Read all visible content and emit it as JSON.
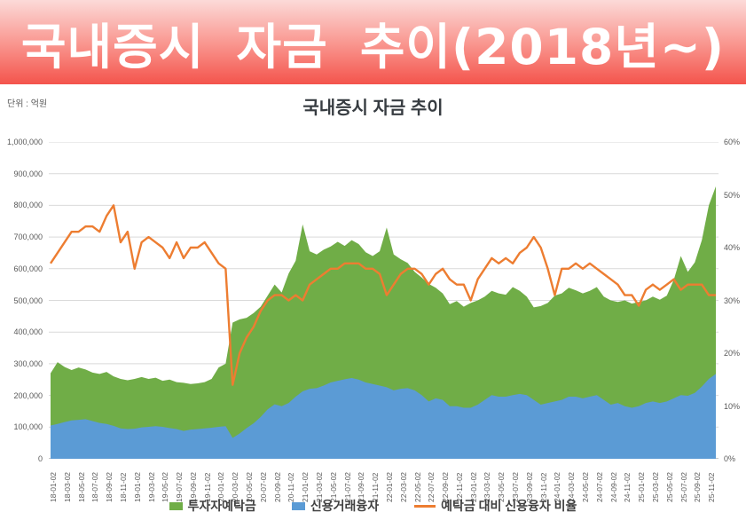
{
  "banner": {
    "title": "국내증시 자금 추이(2018년~)"
  },
  "chart": {
    "title": "국내증시 자금 추이",
    "unit_label": "단위 : 억원"
  },
  "chart_data": {
    "type": "area",
    "title": "국내증시 자금 추이",
    "x_unit": "months since 2018-01 (daily data shown, ticks every 2 months)",
    "x_tick_labels": [
      "18-01-02",
      "18-03-02",
      "18-05-02",
      "18-07-02",
      "18-09-02",
      "18-11-02",
      "19-01-02",
      "19-03-02",
      "19-05-02",
      "19-07-02",
      "19-09-02",
      "19-11-02",
      "20-01-02",
      "20-03-02",
      "20-05-02",
      "20-07-02",
      "20-09-02",
      "20-11-02",
      "21-01-02",
      "21-03-02",
      "21-05-02",
      "21-07-02",
      "21-09-02",
      "21-11-02",
      "22-01-02",
      "22-03-02",
      "22-05-02",
      "22-07-02",
      "22-09-02",
      "22-11-02",
      "23-01-02",
      "23-03-02",
      "23-05-02",
      "23-07-02",
      "23-09-02",
      "23-11-02",
      "24-01-02",
      "24-03-02",
      "24-05-02",
      "24-07-02",
      "24-09-02",
      "24-11-02",
      "25-01-02",
      "25-03-02",
      "25-05-02",
      "25-07-02",
      "25-09-02",
      "25-11-02"
    ],
    "y_left": {
      "min": 0,
      "max": 1000000,
      "step": 100000,
      "ticks": [
        "0",
        "100,000",
        "200,000",
        "300,000",
        "400,000",
        "500,000",
        "600,000",
        "700,000",
        "800,000",
        "900,000",
        "1,000,000"
      ]
    },
    "y_right": {
      "min": 0,
      "max": 60,
      "step": 10,
      "ticks": [
        "0%",
        "10%",
        "20%",
        "30%",
        "40%",
        "50%",
        "60%"
      ]
    },
    "grid_color": "#d9d9d9",
    "axis_line_color": "#c6c6c6",
    "legend_position": "bottom",
    "series": [
      {
        "name": "투자자예탁금",
        "type": "area",
        "axis": "left",
        "color": "#70ad47",
        "values": [
          270000,
          305000,
          290000,
          280000,
          288000,
          282000,
          272000,
          268000,
          274000,
          260000,
          252000,
          248000,
          252000,
          258000,
          252000,
          256000,
          246000,
          250000,
          242000,
          240000,
          236000,
          238000,
          242000,
          252000,
          288000,
          300000,
          430000,
          440000,
          445000,
          460000,
          480000,
          515000,
          550000,
          525000,
          585000,
          625000,
          740000,
          655000,
          645000,
          660000,
          670000,
          685000,
          672000,
          690000,
          678000,
          652000,
          640000,
          655000,
          730000,
          645000,
          630000,
          618000,
          590000,
          572000,
          552000,
          540000,
          522000,
          488000,
          498000,
          480000,
          492000,
          500000,
          512000,
          530000,
          522000,
          518000,
          542000,
          530000,
          512000,
          478000,
          482000,
          492000,
          515000,
          522000,
          540000,
          532000,
          522000,
          530000,
          542000,
          512000,
          500000,
          495000,
          500000,
          490000,
          495000,
          500000,
          512000,
          502000,
          515000,
          565000,
          640000,
          590000,
          620000,
          690000,
          800000,
          860000
        ]
      },
      {
        "name": "신용거래융자",
        "type": "area",
        "axis": "left",
        "color": "#5b9bd5",
        "values": [
          105000,
          110000,
          116000,
          121000,
          123000,
          125000,
          119000,
          113000,
          110000,
          104000,
          96000,
          94000,
          95000,
          99000,
          101000,
          103000,
          101000,
          97000,
          94000,
          88000,
          92000,
          94000,
          96000,
          98000,
          101000,
          103000,
          66000,
          80000,
          97000,
          112000,
          132000,
          156000,
          172000,
          166000,
          176000,
          196000,
          213000,
          221000,
          223000,
          231000,
          241000,
          246000,
          251000,
          255000,
          250000,
          241000,
          236000,
          231000,
          226000,
          216000,
          221000,
          223000,
          216000,
          201000,
          181000,
          191000,
          186000,
          166000,
          166000,
          161000,
          161000,
          171000,
          186000,
          201000,
          196000,
          196000,
          201000,
          205000,
          201000,
          186000,
          171000,
          176000,
          181000,
          186000,
          196000,
          196000,
          191000,
          196000,
          201000,
          186000,
          171000,
          176000,
          166000,
          161000,
          166000,
          176000,
          181000,
          176000,
          181000,
          191000,
          201000,
          199000,
          208000,
          228000,
          252000,
          268000
        ]
      },
      {
        "name": "예탁금 대비 신용융자 비율",
        "type": "line",
        "axis": "right",
        "color": "#ed7d31",
        "values": [
          37,
          39,
          41,
          43,
          43,
          44,
          44,
          43,
          46,
          48,
          41,
          43,
          36,
          41,
          42,
          41,
          40,
          38,
          41,
          38,
          40,
          40,
          41,
          39,
          37,
          36,
          14,
          20,
          23,
          25,
          28,
          30,
          31,
          31,
          30,
          31,
          30,
          33,
          34,
          35,
          36,
          36,
          37,
          37,
          37,
          36,
          36,
          35,
          31,
          33,
          35,
          36,
          36,
          35,
          33,
          35,
          36,
          34,
          33,
          33,
          30,
          34,
          36,
          38,
          37,
          38,
          37,
          39,
          40,
          42,
          40,
          36,
          31,
          36,
          36,
          37,
          36,
          37,
          36,
          35,
          34,
          33,
          31,
          31,
          29,
          32,
          33,
          32,
          33,
          34,
          32,
          33,
          33,
          33,
          31,
          31
        ]
      }
    ]
  }
}
